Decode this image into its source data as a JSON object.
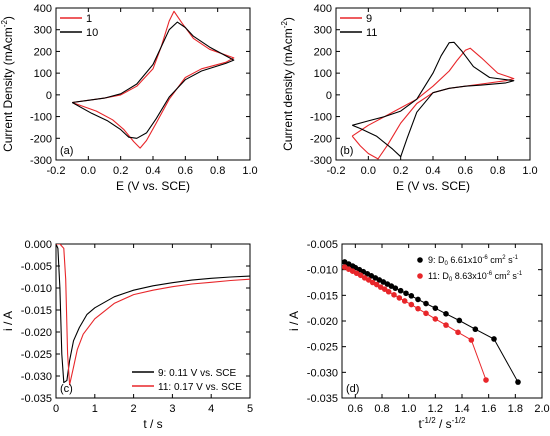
{
  "colors": {
    "red": "#e8262a",
    "black": "#000000"
  },
  "chart_data": [
    {
      "type": "line",
      "panel_label": "(a)",
      "xlabel": "E (V vs. SCE)",
      "ylabel": "Current Density (mAcm",
      "ylabel_sup": "-2",
      "ylabel_tail": ")",
      "xlim": [
        -0.2,
        1.0
      ],
      "ylim": [
        -300,
        400
      ],
      "xticks": [
        -0.2,
        0.0,
        0.2,
        0.4,
        0.6,
        0.8,
        1.0
      ],
      "xtick_labels": [
        "-0.2",
        "0.0",
        "0.2",
        "0.4",
        "0.6",
        "0.8",
        "1.0"
      ],
      "yticks": [
        -300,
        -200,
        -100,
        0,
        100,
        200,
        300,
        400
      ],
      "ytick_labels": [
        "-300",
        "-200",
        "-100",
        "0",
        "100",
        "200",
        "300",
        "400"
      ],
      "legend_position": "top-left",
      "series": [
        {
          "name": "1",
          "color": "red",
          "x": [
            -0.1,
            0.0,
            0.1,
            0.2,
            0.3,
            0.4,
            0.45,
            0.5,
            0.53,
            0.58,
            0.65,
            0.75,
            0.9,
            0.85,
            0.7,
            0.6,
            0.5,
            0.42,
            0.36,
            0.32,
            0.28,
            0.22,
            0.15,
            0.05,
            -0.1
          ],
          "y": [
            -35,
            -25,
            -15,
            0,
            40,
            120,
            220,
            340,
            385,
            330,
            260,
            210,
            170,
            150,
            120,
            80,
            -20,
            -130,
            -210,
            -245,
            -215,
            -160,
            -115,
            -75,
            -35
          ]
        },
        {
          "name": "10",
          "color": "black",
          "x": [
            -0.1,
            0.0,
            0.1,
            0.2,
            0.3,
            0.4,
            0.45,
            0.5,
            0.55,
            0.6,
            0.65,
            0.75,
            0.9,
            0.85,
            0.7,
            0.6,
            0.5,
            0.42,
            0.36,
            0.3,
            0.25,
            0.2,
            0.12,
            0.02,
            -0.1
          ],
          "y": [
            -35,
            -25,
            -15,
            5,
            50,
            140,
            220,
            300,
            335,
            310,
            270,
            220,
            160,
            145,
            110,
            70,
            -10,
            -110,
            -175,
            -200,
            -195,
            -160,
            -120,
            -85,
            -35
          ]
        }
      ]
    },
    {
      "type": "line",
      "panel_label": "(b)",
      "xlabel": "E (V vs. SCE)",
      "ylabel": "Current density (mAcm",
      "ylabel_sup": "-2",
      "ylabel_tail": ")",
      "xlim": [
        -0.2,
        1.0
      ],
      "ylim": [
        -300,
        400
      ],
      "xticks": [
        -0.2,
        0.0,
        0.2,
        0.4,
        0.6,
        0.8,
        1.0
      ],
      "xtick_labels": [
        "-0.2",
        "0.0",
        "0.2",
        "0.4",
        "0.6",
        "0.8",
        "1.0"
      ],
      "yticks": [
        -300,
        -200,
        -100,
        0,
        100,
        200,
        300,
        400
      ],
      "ytick_labels": [
        "-300",
        "-200",
        "-100",
        "0",
        "100",
        "200",
        "300",
        "400"
      ],
      "legend_position": "top-left",
      "series": [
        {
          "name": "9",
          "color": "red",
          "x": [
            -0.1,
            0.0,
            0.1,
            0.2,
            0.3,
            0.4,
            0.5,
            0.55,
            0.6,
            0.63,
            0.7,
            0.8,
            0.9,
            0.85,
            0.7,
            0.6,
            0.5,
            0.4,
            0.3,
            0.2,
            0.12,
            0.06,
            0.0,
            -0.05,
            -0.1
          ],
          "y": [
            -190,
            -140,
            -100,
            -60,
            -20,
            40,
            110,
            160,
            205,
            215,
            170,
            100,
            75,
            65,
            50,
            40,
            30,
            10,
            -40,
            -130,
            -230,
            -295,
            -270,
            -235,
            -190
          ]
        },
        {
          "name": "11",
          "color": "black",
          "x": [
            -0.1,
            0.0,
            0.1,
            0.2,
            0.3,
            0.4,
            0.45,
            0.5,
            0.53,
            0.58,
            0.65,
            0.75,
            0.9,
            0.85,
            0.7,
            0.6,
            0.5,
            0.4,
            0.3,
            0.24,
            0.2,
            0.15,
            0.05,
            -0.05,
            -0.1
          ],
          "y": [
            -140,
            -120,
            -100,
            -75,
            -20,
            100,
            180,
            240,
            242,
            200,
            130,
            80,
            65,
            55,
            45,
            40,
            30,
            10,
            -80,
            -200,
            -285,
            -250,
            -190,
            -155,
            -140
          ]
        }
      ]
    },
    {
      "type": "line",
      "panel_label": "(c)",
      "xlabel": "t / s",
      "ylabel": "i / A",
      "xlim": [
        0,
        5
      ],
      "ylim": [
        -0.035,
        0.0
      ],
      "xticks": [
        0,
        1,
        2,
        3,
        4,
        5
      ],
      "xtick_labels": [
        "0",
        "1",
        "2",
        "3",
        "4",
        "5"
      ],
      "yticks": [
        0.0,
        -0.005,
        -0.01,
        -0.015,
        -0.02,
        -0.025,
        -0.03,
        -0.035
      ],
      "ytick_labels": [
        "0.000",
        "-0.005",
        "-0.010",
        "-0.015",
        "-0.020",
        "-0.025",
        "-0.030",
        "-0.035"
      ],
      "legend_position": "bottom-right",
      "series": [
        {
          "name": "9: 0.11 V vs. SCE",
          "color": "black",
          "x": [
            0,
            0.05,
            0.1,
            0.15,
            0.2,
            0.28,
            0.35,
            0.45,
            0.6,
            0.8,
            1.0,
            1.5,
            2.0,
            2.5,
            3.0,
            3.5,
            4.0,
            4.5,
            5.0
          ],
          "y": [
            0.0,
            -0.001,
            -0.01,
            -0.025,
            -0.0315,
            -0.031,
            -0.0265,
            -0.022,
            -0.019,
            -0.016,
            -0.0145,
            -0.012,
            -0.0105,
            -0.0095,
            -0.0088,
            -0.0082,
            -0.0078,
            -0.0075,
            -0.0073
          ]
        },
        {
          "name": "11: 0.17 V vs. SCE",
          "color": "red",
          "x": [
            0,
            0.1,
            0.2,
            0.25,
            0.3,
            0.35,
            0.45,
            0.55,
            0.7,
            1.0,
            1.5,
            2.0,
            2.5,
            3.0,
            3.5,
            4.0,
            4.5,
            5.0
          ],
          "y": [
            0.0,
            0.0,
            -0.001,
            -0.008,
            -0.025,
            -0.032,
            -0.028,
            -0.024,
            -0.0205,
            -0.017,
            -0.0135,
            -0.0115,
            -0.0105,
            -0.0097,
            -0.0091,
            -0.0087,
            -0.0083,
            -0.008
          ]
        }
      ]
    },
    {
      "type": "scatter",
      "panel_label": "(d)",
      "xlabel": "t",
      "xlabel_sup1": "-1/2",
      "xlabel_mid": " / s",
      "xlabel_sup2": "-1/2",
      "ylabel": "i / A",
      "xlim": [
        0.5,
        2.0
      ],
      "ylim": [
        -0.035,
        -0.005
      ],
      "xticks": [
        0.6,
        0.8,
        1.0,
        1.2,
        1.4,
        1.6,
        1.8,
        2.0
      ],
      "xtick_labels": [
        "0.6",
        "0.8",
        "1.0",
        "1.2",
        "1.4",
        "1.6",
        "1.8",
        "2.0"
      ],
      "yticks": [
        -0.005,
        -0.01,
        -0.015,
        -0.02,
        -0.025,
        -0.03,
        -0.035
      ],
      "ytick_labels": [
        "-0.005",
        "-0.010",
        "-0.015",
        "-0.020",
        "-0.025",
        "-0.030",
        "-0.035"
      ],
      "legend_position": "top-right",
      "series": [
        {
          "name": "9: D",
          "name_sub": "0",
          "name_tail": " 6.61x10",
          "name_sup": "-6",
          "name_end": " cm",
          "name_sup2": "2",
          "name_end2": " s",
          "name_sup3": "-1",
          "color": "black",
          "x": [
            0.52,
            0.55,
            0.58,
            0.6,
            0.63,
            0.66,
            0.69,
            0.72,
            0.75,
            0.78,
            0.81,
            0.84,
            0.87,
            0.9,
            0.94,
            0.98,
            1.02,
            1.07,
            1.13,
            1.2,
            1.28,
            1.38,
            1.5,
            1.64,
            1.82
          ],
          "y": [
            -0.0085,
            -0.0089,
            -0.0093,
            -0.0096,
            -0.01,
            -0.0104,
            -0.0108,
            -0.0112,
            -0.0116,
            -0.012,
            -0.0124,
            -0.0128,
            -0.0132,
            -0.0136,
            -0.0141,
            -0.0146,
            -0.0151,
            -0.0158,
            -0.0166,
            -0.0175,
            -0.0186,
            -0.0199,
            -0.0216,
            -0.0235,
            -0.0319
          ]
        },
        {
          "name": "11: D",
          "name_sub": "0",
          "name_tail": " 8.63x10",
          "name_sup": "-6",
          "name_end": " cm",
          "name_sup2": "2",
          "name_end2": " s",
          "name_sup3": "-1",
          "color": "red",
          "x": [
            0.52,
            0.55,
            0.58,
            0.61,
            0.64,
            0.67,
            0.7,
            0.73,
            0.76,
            0.79,
            0.82,
            0.85,
            0.89,
            0.93,
            0.97,
            1.02,
            1.07,
            1.13,
            1.2,
            1.28,
            1.37,
            1.47,
            1.58
          ],
          "y": [
            -0.0095,
            -0.0099,
            -0.0103,
            -0.0107,
            -0.0111,
            -0.0116,
            -0.012,
            -0.0125,
            -0.0129,
            -0.0134,
            -0.0138,
            -0.0143,
            -0.0149,
            -0.0155,
            -0.0161,
            -0.0168,
            -0.0176,
            -0.0185,
            -0.0196,
            -0.0208,
            -0.0222,
            -0.0237,
            -0.0315
          ]
        }
      ]
    }
  ]
}
